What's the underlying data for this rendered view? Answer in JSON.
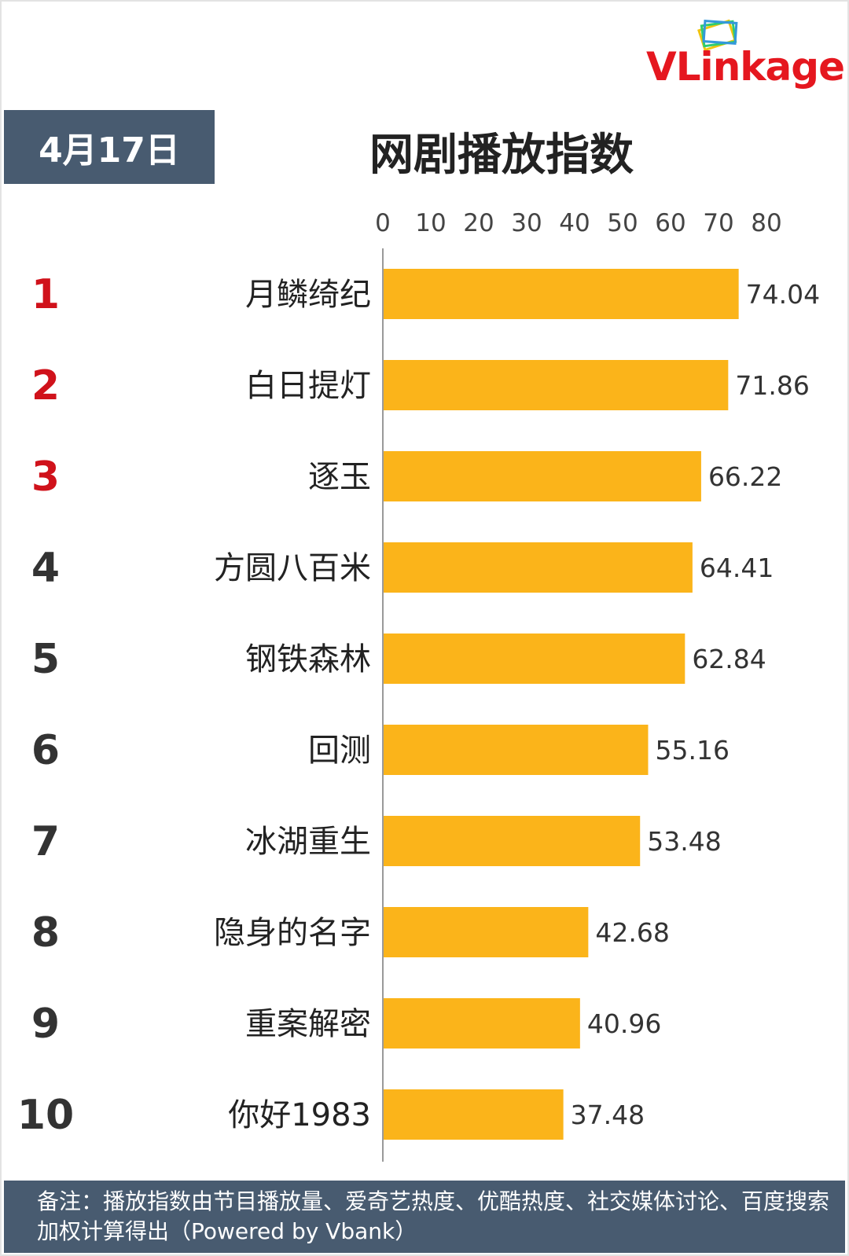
{
  "logo": {
    "text": "VLinkage"
  },
  "date_label": "4月17日",
  "footnote": "备注：播放指数由节目播放量、爱奇艺热度、优酷热度、社交媒体讨论、百度搜索加权计算得出（Powered by Vbank）",
  "colors": {
    "bar": "#fbb41a",
    "header_bg": "#485b70",
    "rank_top": "#d0121b",
    "rank": "#333333"
  },
  "chart_data": {
    "type": "bar",
    "orientation": "horizontal",
    "title": "网剧播放指数",
    "xlim": [
      0,
      80
    ],
    "x_ticks": [
      "0",
      "10",
      "20",
      "30",
      "40",
      "50",
      "60",
      "70",
      "80"
    ],
    "ranks": [
      "1",
      "2",
      "3",
      "4",
      "5",
      "6",
      "7",
      "8",
      "9",
      "10"
    ],
    "categories": [
      "月鳞绮纪",
      "白日提灯",
      "逐玉",
      "方圆八百米",
      "钢铁森林",
      "回测",
      "冰湖重生",
      "隐身的名字",
      "重案解密",
      "你好1983"
    ],
    "values": [
      74.04,
      71.86,
      66.22,
      64.41,
      62.84,
      55.16,
      53.48,
      42.68,
      40.96,
      37.48
    ],
    "value_labels": [
      "74.04",
      "71.86",
      "66.22",
      "64.41",
      "62.84",
      "55.16",
      "53.48",
      "42.68",
      "40.96",
      "37.48"
    ]
  }
}
